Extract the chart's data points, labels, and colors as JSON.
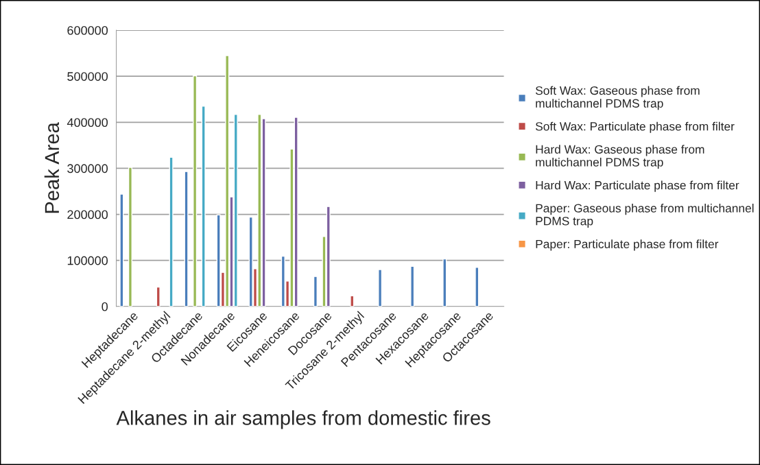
{
  "chart_data": {
    "type": "bar",
    "xlabel": "Alkanes in air samples from domestic fires",
    "ylabel": "Peak Area",
    "categories": [
      "Heptadecane",
      "Heptadecane 2-methyl",
      "Octadecane",
      "Nonadecane",
      "Eicosane",
      "Heneicosane",
      "Docosane",
      "Tricosane 2-methyl",
      "Pentacosane",
      "Hexacosane",
      "Heptacosane",
      "Octacosane"
    ],
    "series": [
      {
        "name": "Soft Wax: Gaseous phase from multichannel PDMS trap",
        "color": "#4a7ebb",
        "values": [
          244000,
          null,
          293000,
          199000,
          194000,
          109000,
          65000,
          null,
          80000,
          87000,
          103000,
          85000
        ]
      },
      {
        "name": "Soft Wax: Particulate phase from filter",
        "color": "#be4b48",
        "values": [
          null,
          42000,
          null,
          74000,
          82000,
          55000,
          null,
          23000,
          null,
          null,
          null,
          null
        ]
      },
      {
        "name": "Hard Wax: Gaseous phase from multichannel PDMS trap",
        "color": "#98b954",
        "values": [
          302000,
          null,
          501000,
          545000,
          417000,
          342000,
          152000,
          null,
          null,
          null,
          null,
          null
        ]
      },
      {
        "name": "Hard Wax: Particulate phase from filter",
        "color": "#7d60a0",
        "values": [
          null,
          null,
          null,
          238000,
          408000,
          411000,
          217000,
          null,
          null,
          null,
          null,
          null
        ]
      },
      {
        "name": "Paper: Gaseous phase from multichannel PDMS trap",
        "color": "#46aac5",
        "values": [
          null,
          324000,
          435000,
          417000,
          null,
          null,
          null,
          null,
          null,
          null,
          null,
          null
        ]
      },
      {
        "name": "Paper: Particulate phase from filter",
        "color": "#f79646",
        "values": [
          null,
          null,
          null,
          null,
          null,
          null,
          null,
          null,
          null,
          null,
          null,
          null
        ]
      }
    ],
    "ylim": [
      0,
      600000
    ],
    "yticks": [
      0,
      100000,
      200000,
      300000,
      400000,
      500000,
      600000
    ],
    "grid": "y",
    "legend": "right"
  }
}
